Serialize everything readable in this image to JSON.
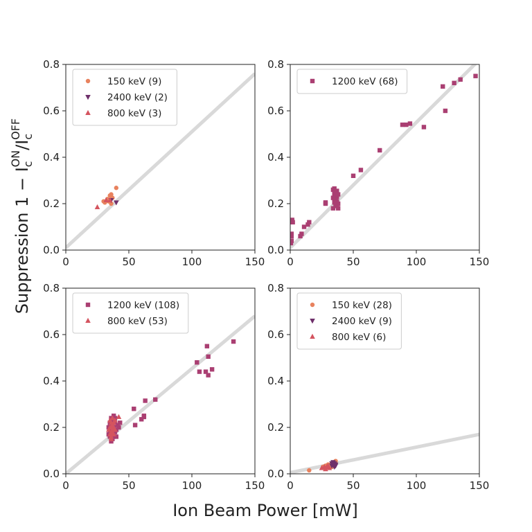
{
  "figure": {
    "xlabel": "Ion Beam Power [mW]",
    "ylabel_prefix": "Suppression 1 − I",
    "ylabel_c": "c",
    "ylabel_on": "ON",
    "ylabel_slash": "/I",
    "ylabel_off": "OFF"
  },
  "colors": {
    "150 keV": "#e8825e",
    "2400 keV": "#6e2f6a",
    "800 keV": "#d4545f",
    "1200 keV": "#aa3f72",
    "fit": "#d9d9d9"
  },
  "chart_data": [
    {
      "type": "scatter",
      "xlim": [
        0,
        150
      ],
      "ylim": [
        0,
        0.8
      ],
      "xticks": [
        "0",
        "50",
        "100",
        "150"
      ],
      "yticks": [
        "0.0",
        "0.2",
        "0.4",
        "0.6",
        "0.8"
      ],
      "legend_position": "top-left",
      "fit_line": {
        "x": [
          0,
          150
        ],
        "y": [
          0.01,
          0.76
        ]
      },
      "series": [
        {
          "name": "150 keV (9)",
          "marker": "circle",
          "color_key": "150 keV",
          "points": [
            [
              30,
              0.21
            ],
            [
              31,
              0.205
            ],
            [
              33,
              0.22
            ],
            [
              34,
              0.21
            ],
            [
              35,
              0.235
            ],
            [
              36,
              0.24
            ],
            [
              36,
              0.2
            ],
            [
              37,
              0.225
            ],
            [
              40,
              0.268
            ]
          ]
        },
        {
          "name": "2400 keV (2)",
          "marker": "triangle-down",
          "color_key": "2400 keV",
          "points": [
            [
              36,
              0.215
            ],
            [
              40,
              0.205
            ]
          ]
        },
        {
          "name": "800 keV (3)",
          "marker": "triangle-up",
          "color_key": "800 keV",
          "points": [
            [
              25,
              0.185
            ],
            [
              32,
              0.215
            ],
            [
              35,
              0.215
            ]
          ]
        }
      ]
    },
    {
      "type": "scatter",
      "xlim": [
        0,
        150
      ],
      "ylim": [
        0,
        0.8
      ],
      "xticks": [
        "0",
        "50",
        "100",
        "150"
      ],
      "yticks": [
        "0.0",
        "0.2",
        "0.4",
        "0.6",
        "0.8"
      ],
      "legend_position": "top-left",
      "fit_line": {
        "x": [
          0,
          150
        ],
        "y": [
          0.01,
          0.82
        ]
      },
      "series": [
        {
          "name": "1200 keV (68)",
          "marker": "square",
          "color_key": "1200 keV",
          "points": [
            [
              0.5,
              0.03
            ],
            [
              1,
              0.07
            ],
            [
              1,
              0.06
            ],
            [
              1.5,
              0.13
            ],
            [
              2,
              0.12
            ],
            [
              1,
              0.04
            ],
            [
              8,
              0.06
            ],
            [
              9,
              0.07
            ],
            [
              11,
              0.1
            ],
            [
              14,
              0.11
            ],
            [
              15,
              0.12
            ],
            [
              28,
              0.2
            ],
            [
              28,
              0.205
            ],
            [
              34,
              0.18
            ],
            [
              34,
              0.26
            ],
            [
              35,
              0.25
            ],
            [
              35,
              0.24
            ],
            [
              35,
              0.22
            ],
            [
              36,
              0.2
            ],
            [
              36,
              0.23
            ],
            [
              36,
              0.19
            ],
            [
              36,
              0.245
            ],
            [
              37,
              0.21
            ],
            [
              37,
              0.23
            ],
            [
              37,
              0.19
            ],
            [
              38,
              0.24
            ],
            [
              38,
              0.2
            ],
            [
              38,
              0.18
            ],
            [
              35,
              0.265
            ],
            [
              36,
              0.215
            ],
            [
              34,
              0.225
            ],
            [
              37,
              0.255
            ],
            [
              35,
              0.205
            ],
            [
              50,
              0.32
            ],
            [
              56,
              0.345
            ],
            [
              71,
              0.43
            ],
            [
              89,
              0.54
            ],
            [
              92,
              0.54
            ],
            [
              95,
              0.545
            ],
            [
              106,
              0.53
            ],
            [
              121,
              0.705
            ],
            [
              123,
              0.6
            ],
            [
              130,
              0.72
            ],
            [
              135,
              0.735
            ],
            [
              147,
              0.75
            ]
          ]
        }
      ]
    },
    {
      "type": "scatter",
      "xlim": [
        0,
        150
      ],
      "ylim": [
        0,
        0.8
      ],
      "xticks": [
        "0",
        "50",
        "100",
        "150"
      ],
      "yticks": [
        "0.0",
        "0.2",
        "0.4",
        "0.6",
        "0.8"
      ],
      "legend_position": "top-left",
      "fit_line": {
        "x": [
          0,
          150
        ],
        "y": [
          0.0,
          0.68
        ]
      },
      "series": [
        {
          "name": "1200 keV (108)",
          "marker": "square",
          "color_key": "1200 keV",
          "points": [
            [
              34,
              0.17
            ],
            [
              34,
              0.2
            ],
            [
              35,
              0.16
            ],
            [
              35,
              0.22
            ],
            [
              35,
              0.18
            ],
            [
              36,
              0.14
            ],
            [
              36,
              0.19
            ],
            [
              36,
              0.23
            ],
            [
              37,
              0.15
            ],
            [
              37,
              0.21
            ],
            [
              37,
              0.17
            ],
            [
              38,
              0.25
            ],
            [
              38,
              0.2
            ],
            [
              38,
              0.16
            ],
            [
              39,
              0.18
            ],
            [
              39,
              0.22
            ],
            [
              40,
              0.16
            ],
            [
              40,
              0.19
            ],
            [
              41,
              0.21
            ],
            [
              42,
              0.2
            ],
            [
              43,
              0.22
            ],
            [
              36,
              0.24
            ],
            [
              37,
              0.18
            ],
            [
              35,
              0.21
            ],
            [
              39,
              0.24
            ],
            [
              54,
              0.28
            ],
            [
              55,
              0.21
            ],
            [
              60,
              0.235
            ],
            [
              62,
              0.25
            ],
            [
              62,
              0.245
            ],
            [
              63,
              0.315
            ],
            [
              71,
              0.32
            ],
            [
              104,
              0.48
            ],
            [
              106,
              0.44
            ],
            [
              111,
              0.44
            ],
            [
              112,
              0.55
            ],
            [
              113,
              0.505
            ],
            [
              113,
              0.425
            ],
            [
              116,
              0.45
            ],
            [
              133,
              0.57
            ]
          ]
        },
        {
          "name": "800 keV (53)",
          "marker": "triangle-up",
          "color_key": "800 keV",
          "points": [
            [
              34,
              0.19
            ],
            [
              35,
              0.17
            ],
            [
              35,
              0.2
            ],
            [
              36,
              0.16
            ],
            [
              36,
              0.22
            ],
            [
              36,
              0.18
            ],
            [
              37,
              0.21
            ],
            [
              37,
              0.19
            ],
            [
              38,
              0.17
            ],
            [
              38,
              0.2
            ],
            [
              39,
              0.23
            ],
            [
              36,
              0.15
            ],
            [
              35,
              0.23
            ],
            [
              37,
              0.24
            ],
            [
              38,
              0.22
            ],
            [
              39,
              0.19
            ],
            [
              42,
              0.245
            ],
            [
              36,
              0.2
            ],
            [
              37,
              0.175
            ]
          ]
        }
      ]
    },
    {
      "type": "scatter",
      "xlim": [
        0,
        150
      ],
      "ylim": [
        0,
        0.8
      ],
      "xticks": [
        "0",
        "50",
        "100",
        "150"
      ],
      "yticks": [
        "0.0",
        "0.2",
        "0.4",
        "0.6",
        "0.8"
      ],
      "legend_position": "top-left",
      "fit_line": {
        "x": [
          0,
          150
        ],
        "y": [
          0.005,
          0.17
        ]
      },
      "series": [
        {
          "name": "150 keV (28)",
          "marker": "circle",
          "color_key": "150 keV",
          "points": [
            [
              15,
              0.015
            ],
            [
              26,
              0.03
            ],
            [
              27,
              0.025
            ],
            [
              28,
              0.035
            ],
            [
              29,
              0.03
            ],
            [
              30,
              0.04
            ],
            [
              31,
              0.03
            ],
            [
              32,
              0.04
            ],
            [
              33,
              0.045
            ],
            [
              34,
              0.04
            ],
            [
              35,
              0.05
            ],
            [
              36,
              0.055
            ],
            [
              34,
              0.035
            ],
            [
              33,
              0.03
            ]
          ]
        },
        {
          "name": "2400 keV (9)",
          "marker": "triangle-down",
          "color_key": "2400 keV",
          "points": [
            [
              33,
              0.035
            ],
            [
              34,
              0.04
            ],
            [
              35,
              0.03
            ],
            [
              35,
              0.045
            ],
            [
              36,
              0.04
            ],
            [
              34,
              0.05
            ],
            [
              36,
              0.035
            ],
            [
              35,
              0.04
            ],
            [
              33,
              0.045
            ]
          ]
        },
        {
          "name": "800 keV (6)",
          "marker": "triangle-up",
          "color_key": "800 keV",
          "points": [
            [
              25,
              0.025
            ],
            [
              27,
              0.03
            ],
            [
              28,
              0.02
            ],
            [
              29,
              0.03
            ],
            [
              30,
              0.035
            ],
            [
              31,
              0.025
            ]
          ]
        }
      ]
    }
  ]
}
